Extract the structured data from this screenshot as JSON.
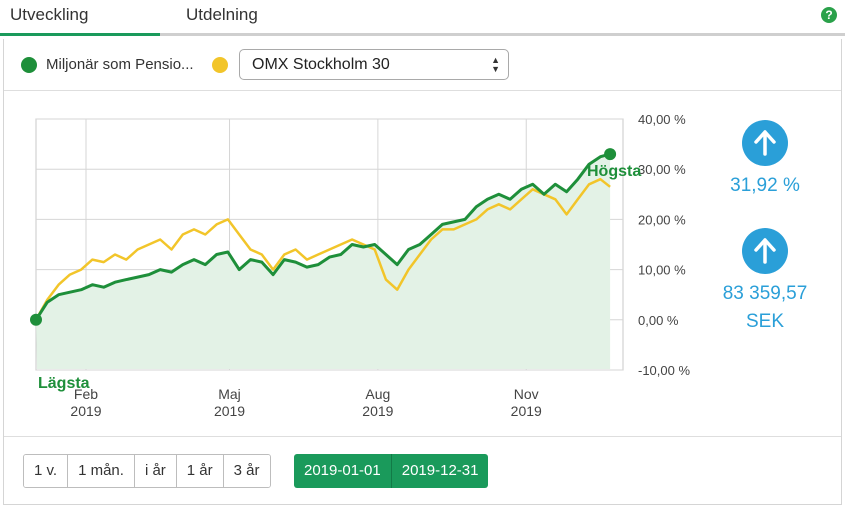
{
  "tabs": [
    {
      "label": "Utveckling",
      "active": true
    },
    {
      "label": "Utdelning",
      "active": false
    }
  ],
  "help_icon": "question-icon",
  "legend": {
    "fund_label": "Miljonär som Pensio...",
    "fund_color": "#1e8f3a",
    "benchmark_color": "#f2c52a",
    "benchmark_selected": "OMX Stockholm 30"
  },
  "kpis": {
    "return_percent": "31,92 %",
    "value_line1": "83 359,57",
    "value_line2": "SEK",
    "accent_color": "#2a9fd8"
  },
  "chart_data": {
    "type": "line",
    "x_ticks": [
      {
        "month": "Feb",
        "year": "2019"
      },
      {
        "month": "Maj",
        "year": "2019"
      },
      {
        "month": "Aug",
        "year": "2019"
      },
      {
        "month": "Nov",
        "year": "2019"
      }
    ],
    "y_ticks": [
      "40,00 %",
      "30,00 %",
      "20,00 %",
      "10,00 %",
      "0,00 %",
      "-10,00 %"
    ],
    "ylim": [
      -10,
      40
    ],
    "xlim": [
      "2019-01-01",
      "2019-12-31"
    ],
    "grid": true,
    "annotations": {
      "max_label": "Högsta",
      "min_label": "Lägsta"
    },
    "series": [
      {
        "role": "fund",
        "color": "#1e8f3a",
        "x": [
          "2019-01-01",
          "2019-01-08",
          "2019-01-15",
          "2019-01-22",
          "2019-01-29",
          "2019-02-05",
          "2019-02-12",
          "2019-02-19",
          "2019-02-26",
          "2019-03-05",
          "2019-03-12",
          "2019-03-19",
          "2019-03-26",
          "2019-04-02",
          "2019-04-09",
          "2019-04-16",
          "2019-04-23",
          "2019-04-30",
          "2019-05-07",
          "2019-05-14",
          "2019-05-21",
          "2019-05-28",
          "2019-06-04",
          "2019-06-11",
          "2019-06-18",
          "2019-06-25",
          "2019-07-02",
          "2019-07-09",
          "2019-07-16",
          "2019-07-23",
          "2019-07-30",
          "2019-08-06",
          "2019-08-13",
          "2019-08-20",
          "2019-08-27",
          "2019-09-03",
          "2019-09-10",
          "2019-09-17",
          "2019-09-24",
          "2019-10-01",
          "2019-10-08",
          "2019-10-15",
          "2019-10-22",
          "2019-10-29",
          "2019-11-05",
          "2019-11-12",
          "2019-11-19",
          "2019-11-26",
          "2019-12-03",
          "2019-12-10",
          "2019-12-17",
          "2019-12-23"
        ],
        "y": [
          0,
          3.5,
          5,
          5.5,
          6,
          7,
          6.5,
          7.5,
          8,
          8.5,
          9,
          10,
          9.5,
          11,
          12,
          11,
          13,
          13.5,
          10,
          12,
          11.5,
          9,
          12,
          11.5,
          10.5,
          11,
          12.5,
          13,
          15,
          14.5,
          15,
          13,
          11,
          14,
          15,
          17,
          19,
          19.5,
          20,
          22.5,
          24,
          25,
          24,
          26,
          27,
          25,
          27,
          25.5,
          28,
          31,
          32.5,
          33
        ]
      },
      {
        "role": "benchmark",
        "color": "#f2c52a",
        "x": [
          "2019-01-01",
          "2019-01-08",
          "2019-01-15",
          "2019-01-22",
          "2019-01-29",
          "2019-02-05",
          "2019-02-12",
          "2019-02-19",
          "2019-02-26",
          "2019-03-05",
          "2019-03-12",
          "2019-03-19",
          "2019-03-26",
          "2019-04-02",
          "2019-04-09",
          "2019-04-16",
          "2019-04-23",
          "2019-04-30",
          "2019-05-07",
          "2019-05-14",
          "2019-05-21",
          "2019-05-28",
          "2019-06-04",
          "2019-06-11",
          "2019-06-18",
          "2019-06-25",
          "2019-07-02",
          "2019-07-09",
          "2019-07-16",
          "2019-07-23",
          "2019-07-30",
          "2019-08-06",
          "2019-08-13",
          "2019-08-20",
          "2019-08-27",
          "2019-09-03",
          "2019-09-10",
          "2019-09-17",
          "2019-09-24",
          "2019-10-01",
          "2019-10-08",
          "2019-10-15",
          "2019-10-22",
          "2019-10-29",
          "2019-11-05",
          "2019-11-12",
          "2019-11-19",
          "2019-11-26",
          "2019-12-03",
          "2019-12-10",
          "2019-12-17",
          "2019-12-23"
        ],
        "y": [
          0,
          4,
          7,
          9,
          10,
          12,
          11.5,
          13,
          12,
          14,
          15,
          16,
          14,
          17,
          18,
          17,
          19,
          20,
          17,
          14,
          13,
          10,
          13,
          14,
          12,
          13,
          14,
          15,
          16,
          15,
          14,
          8,
          6,
          10,
          13,
          16,
          18,
          18,
          19,
          20,
          22,
          23,
          22,
          24,
          26,
          25,
          24,
          21,
          24,
          27,
          28,
          26.5
        ]
      }
    ]
  },
  "range_buttons": [
    "1 v.",
    "1 mån.",
    "i år",
    "1 år",
    "3 år"
  ],
  "date_range": {
    "from": "2019-01-01",
    "to": "2019-12-31"
  }
}
